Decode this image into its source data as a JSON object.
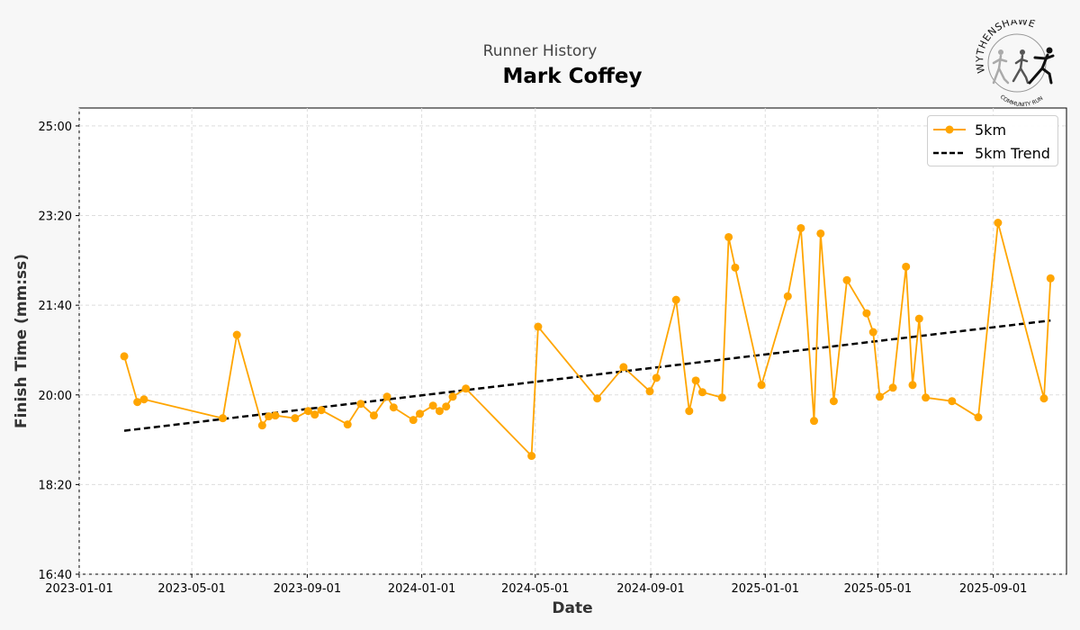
{
  "header": {
    "subtitle": "Runner History",
    "title": "Mark Coffey"
  },
  "logo": {
    "text": "WYTHENSHAWE",
    "subtext": "COMMUNITY RUN"
  },
  "colors": {
    "series": "#FFA500",
    "trend": "#000000",
    "grid": "#dddddd",
    "background": "#f7f7f7",
    "plot_background": "#ffffff"
  },
  "chart_data": {
    "type": "line",
    "xlabel": "Date",
    "ylabel": "Finish Time (mm:ss)",
    "xlim": [
      "2023-01-01",
      "2025-11-18"
    ],
    "ylim": [
      "16:40",
      "25:20"
    ],
    "x_ticks": [
      "2023-01-01",
      "2023-05-01",
      "2023-09-01",
      "2024-01-01",
      "2024-05-01",
      "2024-09-01",
      "2025-01-01",
      "2025-05-01",
      "2025-09-01"
    ],
    "y_ticks": [
      "16:40",
      "18:20",
      "20:00",
      "21:40",
      "23:20",
      "25:00"
    ],
    "grid": true,
    "legend_position": "top-right",
    "series": [
      {
        "name": "5km",
        "style": "line-with-markers",
        "points": [
          [
            "2023-02-18",
            "20:43"
          ],
          [
            "2023-03-04",
            "19:52"
          ],
          [
            "2023-03-11",
            "19:55"
          ],
          [
            "2023-06-03",
            "19:34"
          ],
          [
            "2023-06-18",
            "21:07"
          ],
          [
            "2023-07-15",
            "19:26"
          ],
          [
            "2023-07-22",
            "19:36"
          ],
          [
            "2023-07-29",
            "19:37"
          ],
          [
            "2023-08-19",
            "19:34"
          ],
          [
            "2023-09-02",
            "19:42"
          ],
          [
            "2023-09-09",
            "19:38"
          ],
          [
            "2023-09-16",
            "19:43"
          ],
          [
            "2023-10-14",
            "19:27"
          ],
          [
            "2023-10-28",
            "19:50"
          ],
          [
            "2023-11-11",
            "19:37"
          ],
          [
            "2023-11-25",
            "19:58"
          ],
          [
            "2023-12-02",
            "19:46"
          ],
          [
            "2023-12-23",
            "19:32"
          ],
          [
            "2023-12-30",
            "19:39"
          ],
          [
            "2024-01-13",
            "19:48"
          ],
          [
            "2024-01-20",
            "19:42"
          ],
          [
            "2024-01-27",
            "19:47"
          ],
          [
            "2024-02-03",
            "19:58"
          ],
          [
            "2024-02-17",
            "20:07"
          ],
          [
            "2024-04-27",
            "18:52"
          ],
          [
            "2024-05-04",
            "21:16"
          ],
          [
            "2024-07-06",
            "19:56"
          ],
          [
            "2024-08-03",
            "20:31"
          ],
          [
            "2024-08-31",
            "20:04"
          ],
          [
            "2024-09-07",
            "20:19"
          ],
          [
            "2024-09-28",
            "21:46"
          ],
          [
            "2024-10-12",
            "19:42"
          ],
          [
            "2024-10-19",
            "20:16"
          ],
          [
            "2024-10-26",
            "20:03"
          ],
          [
            "2024-11-16",
            "19:57"
          ],
          [
            "2024-11-23",
            "22:56"
          ],
          [
            "2024-11-30",
            "22:22"
          ],
          [
            "2024-12-28",
            "20:11"
          ],
          [
            "2025-01-25",
            "21:50"
          ],
          [
            "2025-02-08",
            "23:06"
          ],
          [
            "2025-02-22",
            "19:31"
          ],
          [
            "2025-03-01",
            "23:00"
          ],
          [
            "2025-03-15",
            "19:53"
          ],
          [
            "2025-03-29",
            "22:08"
          ],
          [
            "2025-04-19",
            "21:31"
          ],
          [
            "2025-04-26",
            "21:10"
          ],
          [
            "2025-05-03",
            "19:58"
          ],
          [
            "2025-05-17",
            "20:08"
          ],
          [
            "2025-05-31",
            "22:23"
          ],
          [
            "2025-06-07",
            "20:11"
          ],
          [
            "2025-06-14",
            "21:25"
          ],
          [
            "2025-06-21",
            "19:57"
          ],
          [
            "2025-07-19",
            "19:53"
          ],
          [
            "2025-08-16",
            "19:35"
          ],
          [
            "2025-09-06",
            "23:12"
          ],
          [
            "2025-10-25",
            "19:56"
          ],
          [
            "2025-11-01",
            "22:10"
          ]
        ]
      },
      {
        "name": "5km Trend",
        "style": "dashed",
        "points": [
          [
            "2023-02-18",
            "19:20"
          ],
          [
            "2025-11-01",
            "21:23"
          ]
        ]
      }
    ]
  }
}
